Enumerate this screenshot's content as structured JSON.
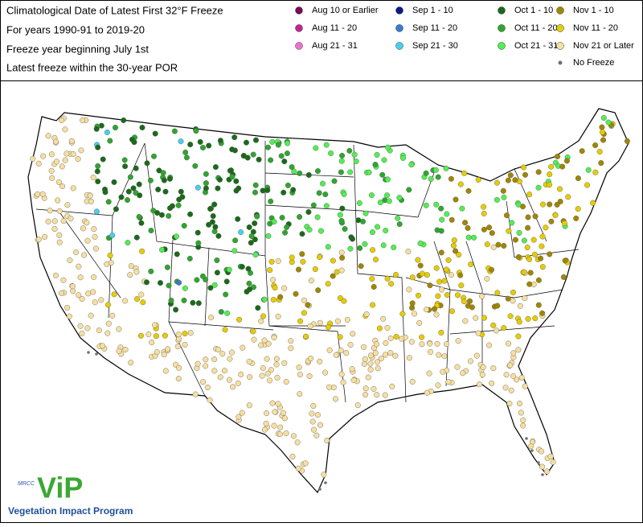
{
  "header": {
    "title_lines": [
      "Climatological Date of Latest First 32°F Freeze",
      "For years 1990-91 to 2019-20",
      "Freeze year beginning July 1st",
      "Latest freeze within the 30-year POR"
    ]
  },
  "legend": {
    "items": [
      {
        "label": "Aug 10 or Earlier",
        "color": "#7a0a5a"
      },
      {
        "label": "Aug 11 - 20",
        "color": "#c0268f"
      },
      {
        "label": "Aug 21 - 31",
        "color": "#f070d0"
      },
      {
        "label": "Sep 1 - 10",
        "color": "#0c1a8c"
      },
      {
        "label": "Sep 11 - 20",
        "color": "#3a7ccc"
      },
      {
        "label": "Sep 21 - 30",
        "color": "#46d0f0"
      },
      {
        "label": "Oct 1 - 10",
        "color": "#1a6a1a"
      },
      {
        "label": "Oct 11 - 20",
        "color": "#2ea62e"
      },
      {
        "label": "Oct 21 - 31",
        "color": "#52ee52"
      },
      {
        "label": "Nov 1 - 10",
        "color": "#a08600"
      },
      {
        "label": "Nov 11 - 20",
        "color": "#e6cc00"
      },
      {
        "label": "Nov 21 or Later",
        "color": "#f6dfa0"
      },
      {
        "label": "No Freeze",
        "color": "#707070"
      }
    ]
  },
  "logo": {
    "org": "MRCC",
    "brand": "ViP",
    "program": "Vegetation Impact Program"
  }
}
